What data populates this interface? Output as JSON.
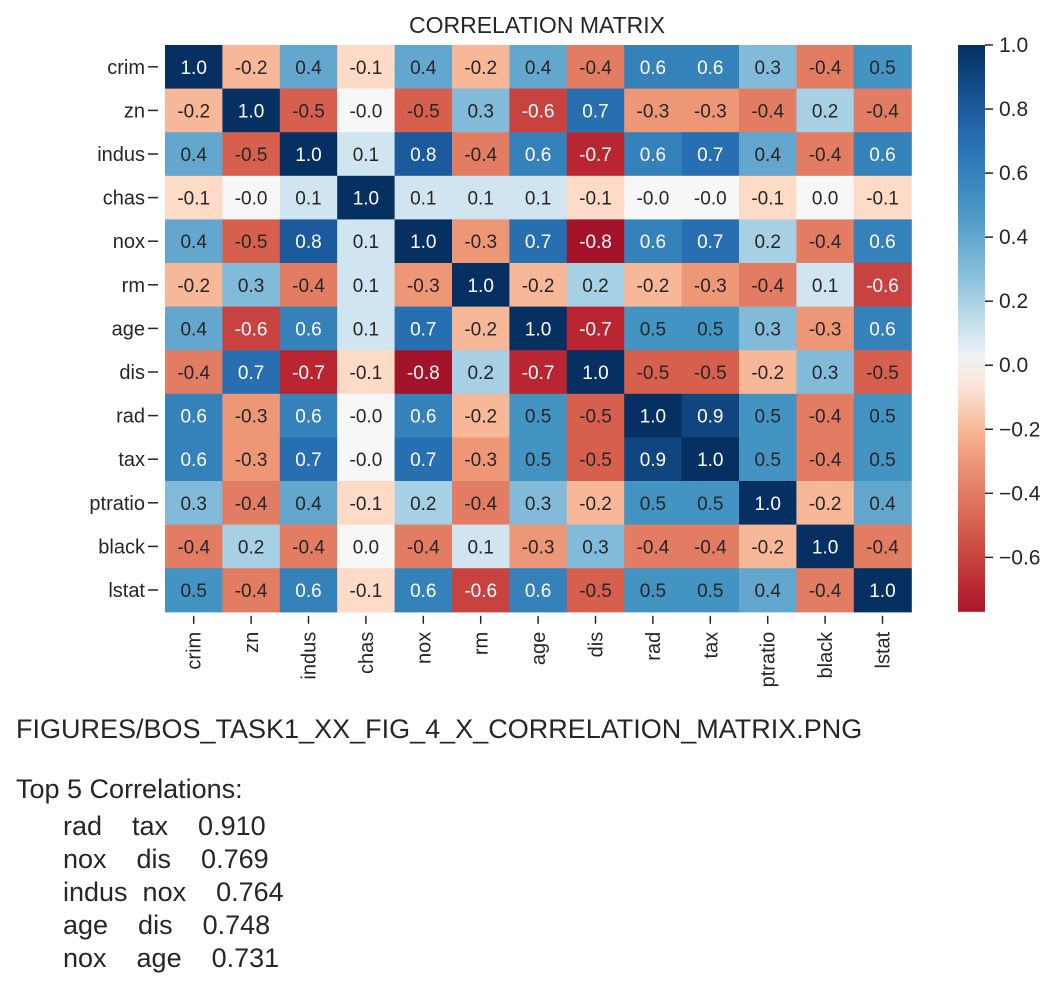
{
  "chart_data": {
    "type": "heatmap",
    "title": "CORRELATION MATRIX",
    "variables": [
      "crim",
      "zn",
      "indus",
      "chas",
      "nox",
      "rm",
      "age",
      "dis",
      "rad",
      "tax",
      "ptratio",
      "black",
      "lstat"
    ],
    "values": [
      [
        1.0,
        -0.2,
        0.4,
        -0.1,
        0.4,
        -0.2,
        0.4,
        -0.4,
        0.6,
        0.6,
        0.3,
        -0.4,
        0.5
      ],
      [
        -0.2,
        1.0,
        -0.5,
        -0.0,
        -0.5,
        0.3,
        -0.6,
        0.7,
        -0.3,
        -0.3,
        -0.4,
        0.2,
        -0.4
      ],
      [
        0.4,
        -0.5,
        1.0,
        0.1,
        0.8,
        -0.4,
        0.6,
        -0.7,
        0.6,
        0.7,
        0.4,
        -0.4,
        0.6
      ],
      [
        -0.1,
        -0.0,
        0.1,
        1.0,
        0.1,
        0.1,
        0.1,
        -0.1,
        -0.0,
        -0.0,
        -0.1,
        0.0,
        -0.1
      ],
      [
        0.4,
        -0.5,
        0.8,
        0.1,
        1.0,
        -0.3,
        0.7,
        -0.8,
        0.6,
        0.7,
        0.2,
        -0.4,
        0.6
      ],
      [
        -0.2,
        0.3,
        -0.4,
        0.1,
        -0.3,
        1.0,
        -0.2,
        0.2,
        -0.2,
        -0.3,
        -0.4,
        0.1,
        -0.6
      ],
      [
        0.4,
        -0.6,
        0.6,
        0.1,
        0.7,
        -0.2,
        1.0,
        -0.7,
        0.5,
        0.5,
        0.3,
        -0.3,
        0.6
      ],
      [
        -0.4,
        0.7,
        -0.7,
        -0.1,
        -0.8,
        0.2,
        -0.7,
        1.0,
        -0.5,
        -0.5,
        -0.2,
        0.3,
        -0.5
      ],
      [
        0.6,
        -0.3,
        0.6,
        -0.0,
        0.6,
        -0.2,
        0.5,
        -0.5,
        1.0,
        0.9,
        0.5,
        -0.4,
        0.5
      ],
      [
        0.6,
        -0.3,
        0.7,
        -0.0,
        0.7,
        -0.3,
        0.5,
        -0.5,
        0.9,
        1.0,
        0.5,
        -0.4,
        0.5
      ],
      [
        0.3,
        -0.4,
        0.4,
        -0.1,
        0.2,
        -0.4,
        0.3,
        -0.2,
        0.5,
        0.5,
        1.0,
        -0.2,
        0.4
      ],
      [
        -0.4,
        0.2,
        -0.4,
        0.0,
        -0.4,
        0.1,
        -0.3,
        0.3,
        -0.4,
        -0.4,
        -0.2,
        1.0,
        -0.4
      ],
      [
        0.5,
        -0.4,
        0.6,
        -0.1,
        0.6,
        -0.6,
        0.6,
        -0.5,
        0.5,
        0.5,
        0.4,
        -0.4,
        1.0
      ]
    ],
    "colorbar": {
      "range": [
        -0.77,
        1.0
      ],
      "ticks": [
        1.0,
        0.8,
        0.6,
        0.4,
        0.2,
        0.0,
        -0.2,
        -0.4,
        -0.6
      ],
      "tick_labels": [
        "1.0",
        "0.8",
        "0.6",
        "0.4",
        "0.2",
        "0.0",
        "−0.2",
        "−0.4",
        "−0.6"
      ],
      "colormap": "RdBu"
    }
  },
  "output": {
    "saved_path": "FIGURES/BOS_TASK1_XX_FIG_4_X_CORRELATION_MATRIX.PNG",
    "top_heading": "Top 5 Correlations:",
    "top_rows": [
      "rad    tax    0.910",
      "nox    dis    0.769",
      "indus  nox    0.764",
      "age    dis    0.748",
      "nox    age    0.731"
    ]
  }
}
